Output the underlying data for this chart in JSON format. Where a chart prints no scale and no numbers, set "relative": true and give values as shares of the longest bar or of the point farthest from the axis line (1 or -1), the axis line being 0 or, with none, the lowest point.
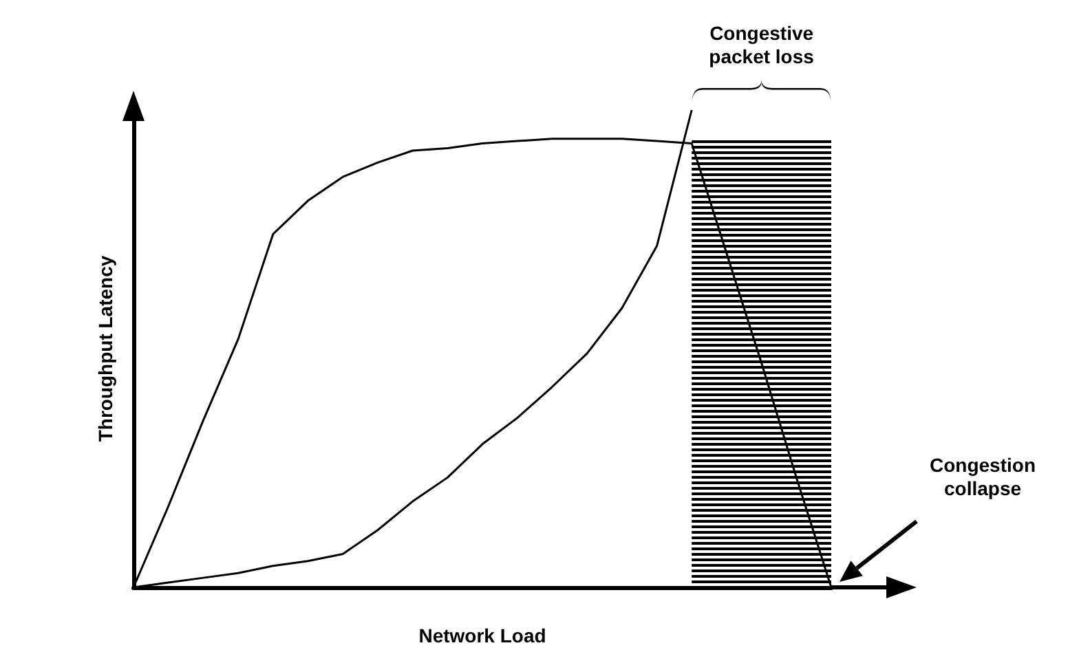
{
  "chart_data": {
    "type": "line",
    "relative": true,
    "xlabel": "Network Load",
    "ylabel": "Throughput Latency",
    "marker": "none",
    "line_style": "solid",
    "categories": [
      null,
      null,
      null,
      null,
      null,
      null,
      null,
      null,
      null,
      null,
      null,
      null,
      null,
      null,
      null,
      null,
      null,
      null,
      null,
      null,
      null
    ],
    "series": [
      {
        "color": "#000000",
        "values": [
          0,
          0.17,
          0.35,
          0.52,
          0.74,
          0.81,
          0.86,
          0.89,
          0.915,
          0.92,
          0.93,
          0.935,
          0.94,
          0.94,
          0.94,
          0.935,
          0.93,
          0.7,
          0.47,
          0.23,
          0
        ]
      },
      {
        "color": "#000000",
        "values": [
          0,
          0.01,
          0.02,
          0.03,
          0.045,
          0.055,
          0.07,
          0.12,
          0.18,
          0.23,
          0.3,
          0.355,
          0.42,
          0.49,
          0.585,
          0.715,
          1,
          null,
          null,
          null,
          null
        ]
      }
    ],
    "annotations": [
      "Congestive packet loss",
      "Congestion collapse"
    ]
  }
}
